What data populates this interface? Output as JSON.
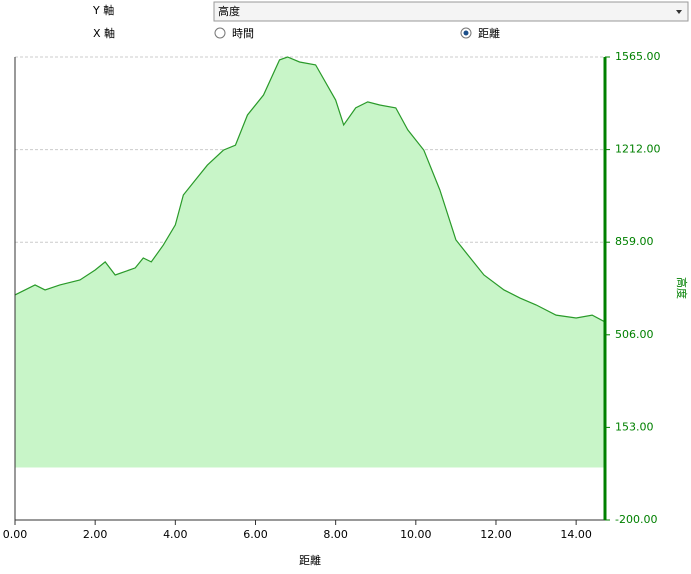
{
  "controls": {
    "y_axis_label": "Y 軸",
    "y_axis_select": "高度",
    "x_axis_label": "X 軸",
    "x_options": [
      "時間",
      "距離"
    ],
    "x_selected": "距離"
  },
  "chart_data": {
    "type": "area",
    "x_label": "距離",
    "y_label": "高度",
    "color": "#2a9a2a",
    "fill": "#c8f5c8",
    "grid": true,
    "x": [
      0,
      0.25,
      0.5,
      0.75,
      1.12,
      1.62,
      2.0,
      2.25,
      2.5,
      3.0,
      3.2,
      3.4,
      3.7,
      4.0,
      4.2,
      4.5,
      4.8,
      5.2,
      5.5,
      5.8,
      6.2,
      6.6,
      6.8,
      7.1,
      7.5,
      8.0,
      8.2,
      8.5,
      8.8,
      9.1,
      9.5,
      9.8,
      10.2,
      10.6,
      11.0,
      11.3,
      11.7,
      12.2,
      12.6,
      13.0,
      13.5,
      14.0,
      14.4,
      14.72
    ],
    "values": [
      658,
      677,
      696,
      677,
      696,
      715,
      753,
      784,
      734,
      761,
      799,
      784,
      848,
      925,
      1039,
      1096,
      1153,
      1210,
      1229,
      1344,
      1420,
      1554,
      1565,
      1546,
      1535,
      1401,
      1306,
      1371,
      1394,
      1382,
      1371,
      1287,
      1210,
      1058,
      868,
      810,
      734,
      677,
      646,
      620,
      581,
      570,
      581,
      555
    ],
    "xlim": [
      0,
      14.72
    ],
    "ylim": [
      -200,
      1565
    ],
    "xticks": [
      {
        "value": 0,
        "label": "0.00"
      },
      {
        "value": 2,
        "label": "2.00"
      },
      {
        "value": 4,
        "label": "4.00"
      },
      {
        "value": 6,
        "label": "6.00"
      },
      {
        "value": 8,
        "label": "8.00"
      },
      {
        "value": 10,
        "label": "10.00"
      },
      {
        "value": 12,
        "label": "12.00"
      },
      {
        "value": 14,
        "label": "14.00"
      }
    ],
    "yticks": [
      {
        "value": -200,
        "label": "-200.00"
      },
      {
        "value": 153,
        "label": "153.00"
      },
      {
        "value": 506,
        "label": "506.00"
      },
      {
        "value": 859,
        "label": "859.00"
      },
      {
        "value": 1212,
        "label": "1212.00"
      },
      {
        "value": 1565,
        "label": "1565.00"
      }
    ]
  }
}
